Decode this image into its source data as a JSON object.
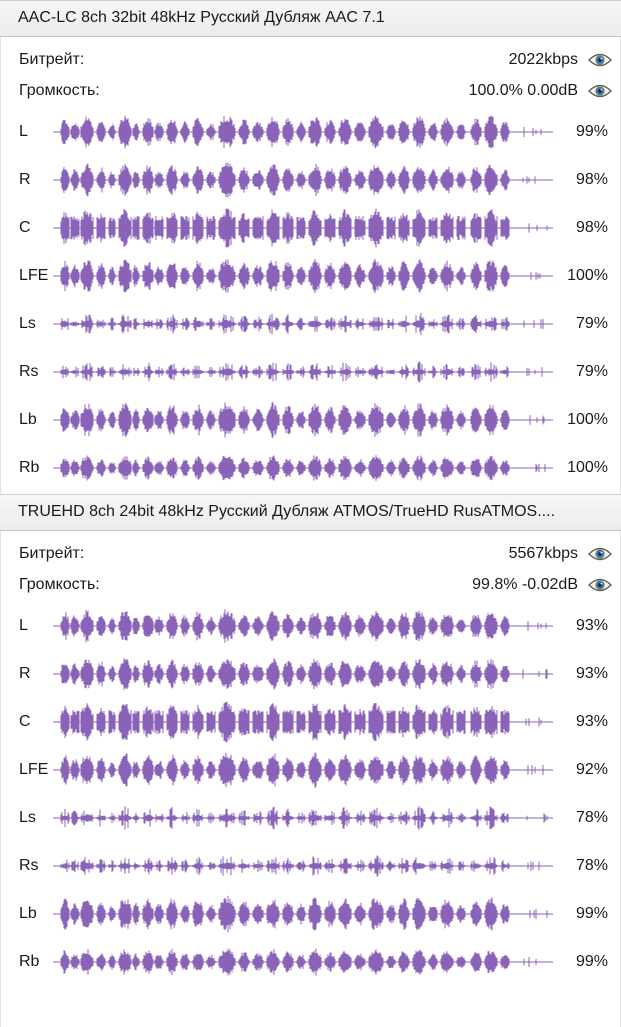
{
  "colors": {
    "waveform": "#8a63b8",
    "header_bg": "#ececec",
    "eye_iris": "#4a7da6"
  },
  "icons": {
    "visibility": "eye-icon"
  },
  "tracks": [
    {
      "title": "AAC-LC 8ch 32bit 48kHz Русский Дубляж  AAC 7.1",
      "bitrate_label": "Битрейт:",
      "bitrate_value": "2022kbps",
      "volume_label": "Громкость:",
      "volume_value": "100.0% 0.00dB",
      "channels": [
        {
          "name": "L",
          "percent": "99%"
        },
        {
          "name": "R",
          "percent": "98%"
        },
        {
          "name": "C",
          "percent": "98%"
        },
        {
          "name": "LFE",
          "percent": "100%"
        },
        {
          "name": "Ls",
          "percent": "79%"
        },
        {
          "name": "Rs",
          "percent": "79%"
        },
        {
          "name": "Lb",
          "percent": "100%"
        },
        {
          "name": "Rb",
          "percent": "100%"
        }
      ]
    },
    {
      "title": "TRUEHD 8ch 24bit 48kHz Русский Дубляж  ATMOS/TrueHD RusATMOS....",
      "bitrate_label": "Битрейт:",
      "bitrate_value": "5567kbps",
      "volume_label": "Громкость:",
      "volume_value": "99.8% -0.02dB",
      "channels": [
        {
          "name": "L",
          "percent": "93%"
        },
        {
          "name": "R",
          "percent": "93%"
        },
        {
          "name": "C",
          "percent": "93%"
        },
        {
          "name": "LFE",
          "percent": "92%"
        },
        {
          "name": "Ls",
          "percent": "78%"
        },
        {
          "name": "Rs",
          "percent": "78%"
        },
        {
          "name": "Lb",
          "percent": "99%"
        },
        {
          "name": "Rb",
          "percent": "99%"
        }
      ]
    }
  ]
}
